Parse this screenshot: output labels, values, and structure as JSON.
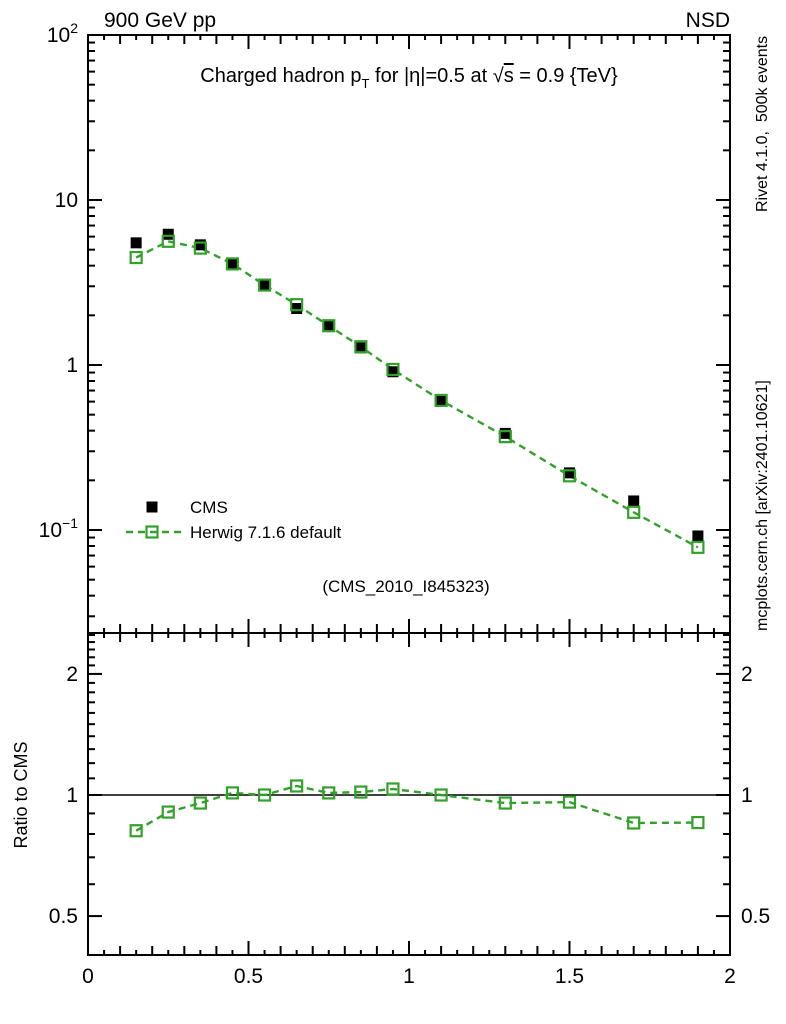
{
  "header": {
    "left": "900 GeV pp",
    "right": "NSD"
  },
  "annotations": {
    "watermark": "(CMS_2010_I845323)",
    "rivet_label": "Rivet 4.1.0,  500k events",
    "mcplots_label": "mcplots.cern.ch [arXiv:2401.10621]"
  },
  "colors": {
    "herwig_green": "#33a02c",
    "cms_black": "#000000",
    "gray_label": "#8e8e8e",
    "watermark_gray": "#aeaeae",
    "frame": "#000000"
  },
  "chart_data": {
    "type": "line",
    "title": "Charged hadron p_T for |η|=0.5 at √s = 0.9 {TeV}",
    "title_parts": {
      "pre": "Charged hadron p",
      "sub": "T",
      "mid": " for |η|=0.5 at ",
      "sqrt_sym": "√",
      "sqrt_arg": "s",
      "post": " = 0.9 {TeV}"
    },
    "x": [
      0.15,
      0.25,
      0.35,
      0.45,
      0.55,
      0.65,
      0.75,
      0.85,
      0.95,
      1.1,
      1.3,
      1.5,
      1.7,
      1.9
    ],
    "series": [
      {
        "name": "CMS",
        "marker": "filled-square",
        "color": "#000000",
        "values": [
          5.5,
          6.2,
          5.35,
          4.05,
          3.05,
          2.2,
          1.71,
          1.27,
          0.91,
          0.61,
          0.385,
          0.222,
          0.15,
          0.092
        ]
      },
      {
        "name": "Herwig 7.1.6 default",
        "marker": "open-square",
        "line": "dashed",
        "color": "#33a02c",
        "values": [
          4.48,
          5.62,
          5.11,
          4.1,
          3.05,
          2.32,
          1.73,
          1.29,
          0.94,
          0.61,
          0.368,
          0.213,
          0.128,
          0.0785
        ]
      }
    ],
    "xaxis": {
      "lim": [
        0,
        2
      ],
      "major_ticks": [
        0,
        0.5,
        1,
        1.5,
        2
      ],
      "major_labels": [
        "0",
        "0.5",
        "1",
        "1.5",
        "2"
      ],
      "medium_step": 0.1,
      "minor_step": 0.05
    },
    "yaxis_main": {
      "scale": "log",
      "lim": [
        0.0238,
        100
      ],
      "ticks": [
        {
          "value": 100,
          "base": "10",
          "sup": "2"
        },
        {
          "value": 10,
          "base": "10"
        },
        {
          "value": 1,
          "base": "1"
        },
        {
          "value": 0.1,
          "base": "10",
          "sup": "−1"
        }
      ]
    },
    "ratio_panel": {
      "ylabel": "Ratio to CMS",
      "reference_line": 1,
      "scale": "log",
      "lim": [
        0.402,
        2.535
      ],
      "ticks": [
        {
          "value": 2,
          "label": "2"
        },
        {
          "value": 1,
          "label": "1"
        },
        {
          "value": 0.5,
          "label": "0.5"
        }
      ],
      "minor_ticks": [
        0.4,
        0.6,
        0.7,
        0.8,
        0.9,
        1.1,
        1.2,
        1.3,
        1.4,
        1.5,
        1.6,
        1.7,
        1.8,
        1.9,
        2.1,
        2.2,
        2.3,
        2.4,
        2.5
      ],
      "values": [
        0.815,
        0.907,
        0.955,
        1.012,
        1.0,
        1.053,
        1.012,
        1.017,
        1.035,
        1.0,
        0.955,
        0.96,
        0.852,
        0.854
      ]
    },
    "legend": {
      "entries": [
        "CMS",
        "Herwig 7.1.6 default"
      ]
    }
  }
}
